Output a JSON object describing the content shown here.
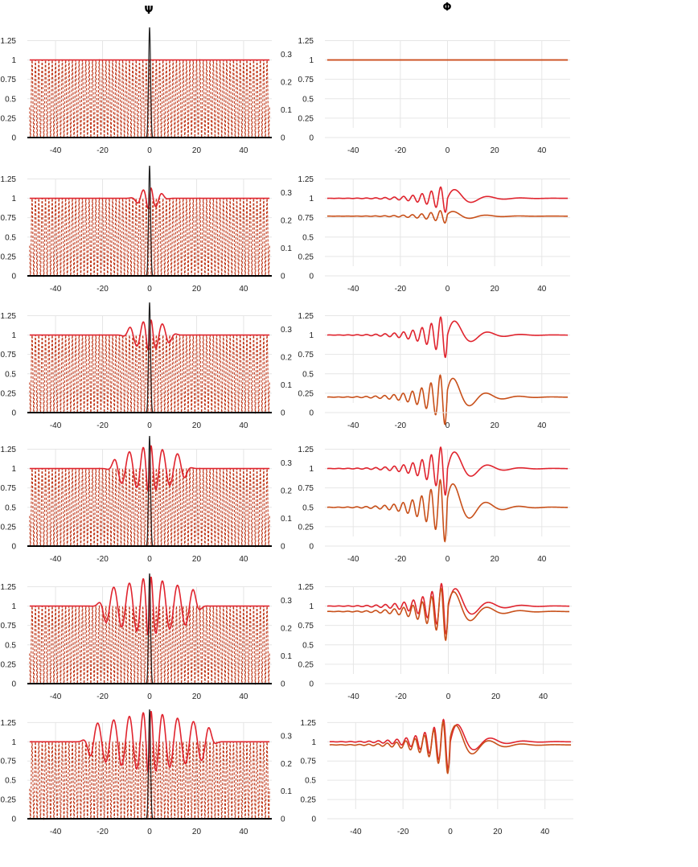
{
  "titles": {
    "psi": "Ψ",
    "phi": "Φ"
  },
  "colors": {
    "psi_line": "#e0242e",
    "phi_line": "#e0242e",
    "phi_line2": "#c8501a",
    "dash": "#c0391b",
    "pulse": "#222222",
    "axis": "#000000"
  },
  "chart_data": [
    {
      "type": "line",
      "panel": "psi",
      "row": 0,
      "xlim": [
        -52,
        52
      ],
      "ylim": [
        0,
        1.4
      ],
      "y2lim": [
        0,
        0.35
      ],
      "xticks": [
        "-40",
        "-20",
        "0",
        "20",
        "40"
      ],
      "yticks": [
        "0",
        "0.25",
        "0.5",
        "0.75",
        "1",
        "1.25"
      ],
      "y2ticks": [
        "0",
        "0.1",
        "0.2",
        "0.3"
      ],
      "wavefront": 0
    },
    {
      "type": "line",
      "panel": "phi",
      "row": 0,
      "xlim": [
        -52,
        52
      ],
      "ylim": [
        0,
        1.4
      ],
      "xticks": [
        "-40",
        "-20",
        "0",
        "20",
        "40"
      ],
      "yticks": [
        "0",
        "0.25",
        "0.5",
        "0.75",
        "1",
        "1.25"
      ],
      "series": [
        {
          "baseline": 1.0,
          "amplitude": 0
        },
        {
          "baseline": 1.0,
          "amplitude": 0
        }
      ]
    },
    {
      "type": "line",
      "panel": "psi",
      "row": 1,
      "xlim": [
        -52,
        52
      ],
      "ylim": [
        0,
        1.4
      ],
      "y2lim": [
        0,
        0.35
      ],
      "xticks": [
        "-40",
        "-20",
        "0",
        "20",
        "40"
      ],
      "yticks": [
        "0",
        "0.25",
        "0.5",
        "0.75",
        "1",
        "1.25"
      ],
      "y2ticks": [
        "0",
        "0.1",
        "0.2",
        "0.3"
      ],
      "wavefront": 6
    },
    {
      "type": "line",
      "panel": "phi",
      "row": 1,
      "xlim": [
        -52,
        52
      ],
      "ylim": [
        0,
        1.4
      ],
      "xticks": [
        "-40",
        "-20",
        "0",
        "20",
        "40"
      ],
      "yticks": [
        "0",
        "0.25",
        "0.5",
        "0.75",
        "1",
        "1.25"
      ],
      "series": [
        {
          "baseline": 1.0,
          "amplitude": 0.2
        },
        {
          "baseline": 0.77,
          "amplitude": 0.1
        }
      ]
    },
    {
      "type": "line",
      "panel": "psi",
      "row": 2,
      "xlim": [
        -52,
        52
      ],
      "ylim": [
        0,
        1.4
      ],
      "y2lim": [
        0,
        0.35
      ],
      "xticks": [
        "-40",
        "-20",
        "0",
        "20",
        "40"
      ],
      "yticks": [
        "0",
        "0.25",
        "0.5",
        "0.75",
        "1",
        "1.25"
      ],
      "y2ticks": [
        "0",
        "0.1",
        "0.2",
        "0.3"
      ],
      "wavefront": 12
    },
    {
      "type": "line",
      "panel": "phi",
      "row": 2,
      "xlim": [
        -52,
        52
      ],
      "ylim": [
        0,
        1.4
      ],
      "xticks": [
        "-40",
        "-20",
        "0",
        "20",
        "40"
      ],
      "yticks": [
        "0",
        "0.25",
        "0.5",
        "0.75",
        "1",
        "1.25"
      ],
      "series": [
        {
          "baseline": 1.0,
          "amplitude": 0.32
        },
        {
          "baseline": 0.2,
          "amplitude": 0.4
        }
      ]
    },
    {
      "type": "line",
      "panel": "psi",
      "row": 3,
      "xlim": [
        -52,
        52
      ],
      "ylim": [
        0,
        1.4
      ],
      "y2lim": [
        0,
        0.35
      ],
      "xticks": [
        "-40",
        "-20",
        "0",
        "20",
        "40"
      ],
      "yticks": [
        "0",
        "0.25",
        "0.5",
        "0.75",
        "1",
        "1.25"
      ],
      "y2ticks": [
        "0",
        "0.1",
        "0.2",
        "0.3"
      ],
      "wavefront": 22
    },
    {
      "type": "line",
      "panel": "phi",
      "row": 3,
      "xlim": [
        -52,
        52
      ],
      "ylim": [
        0,
        1.4
      ],
      "xticks": [
        "-40",
        "-20",
        "0",
        "20",
        "40"
      ],
      "yticks": [
        "0",
        "0.25",
        "0.5",
        "0.75",
        "1",
        "1.25"
      ],
      "series": [
        {
          "baseline": 1.0,
          "amplitude": 0.38
        },
        {
          "baseline": 0.5,
          "amplitude": 0.5
        }
      ]
    },
    {
      "type": "line",
      "panel": "psi",
      "row": 4,
      "xlim": [
        -52,
        52
      ],
      "ylim": [
        0,
        1.4
      ],
      "y2lim": [
        0,
        0.35
      ],
      "xticks": [
        "-40",
        "-20",
        "0",
        "20",
        "40"
      ],
      "yticks": [
        "0",
        "0.25",
        "0.5",
        "0.75",
        "1",
        "1.25"
      ],
      "y2ticks": [
        "0",
        "0.1",
        "0.2",
        "0.3"
      ],
      "wavefront": 30
    },
    {
      "type": "line",
      "panel": "phi",
      "row": 4,
      "xlim": [
        -52,
        52
      ],
      "ylim": [
        0,
        1.4
      ],
      "xticks": [
        "-40",
        "-20",
        "0",
        "20",
        "40"
      ],
      "yticks": [
        "0",
        "0.25",
        "0.5",
        "0.75",
        "1",
        "1.25"
      ],
      "series": [
        {
          "baseline": 1.0,
          "amplitude": 0.4
        },
        {
          "baseline": 0.93,
          "amplitude": 0.42
        }
      ]
    },
    {
      "type": "line",
      "panel": "psi",
      "row": 5,
      "xlim": [
        -52,
        52
      ],
      "ylim": [
        0,
        1.4
      ],
      "y2lim": [
        0,
        0.35
      ],
      "xticks": [
        "-40",
        "-20",
        "0",
        "20",
        "40"
      ],
      "yticks": [
        "0",
        "0.25",
        "0.5",
        "0.75",
        "1",
        "1.25"
      ],
      "y2ticks": [
        "0",
        "0.1",
        "0.2",
        "0.3"
      ],
      "wavefront": 40
    },
    {
      "type": "line",
      "panel": "phi",
      "row": 5,
      "xlim": [
        -52,
        52
      ],
      "ylim": [
        0,
        1.4
      ],
      "xticks": [
        "-40",
        "-20",
        "0",
        "20",
        "40"
      ],
      "yticks": [
        "0",
        "0.25",
        "0.5",
        "0.75",
        "1",
        "1.25"
      ],
      "series": [
        {
          "baseline": 1.0,
          "amplitude": 0.4
        },
        {
          "baseline": 0.96,
          "amplitude": 0.42
        }
      ]
    }
  ]
}
